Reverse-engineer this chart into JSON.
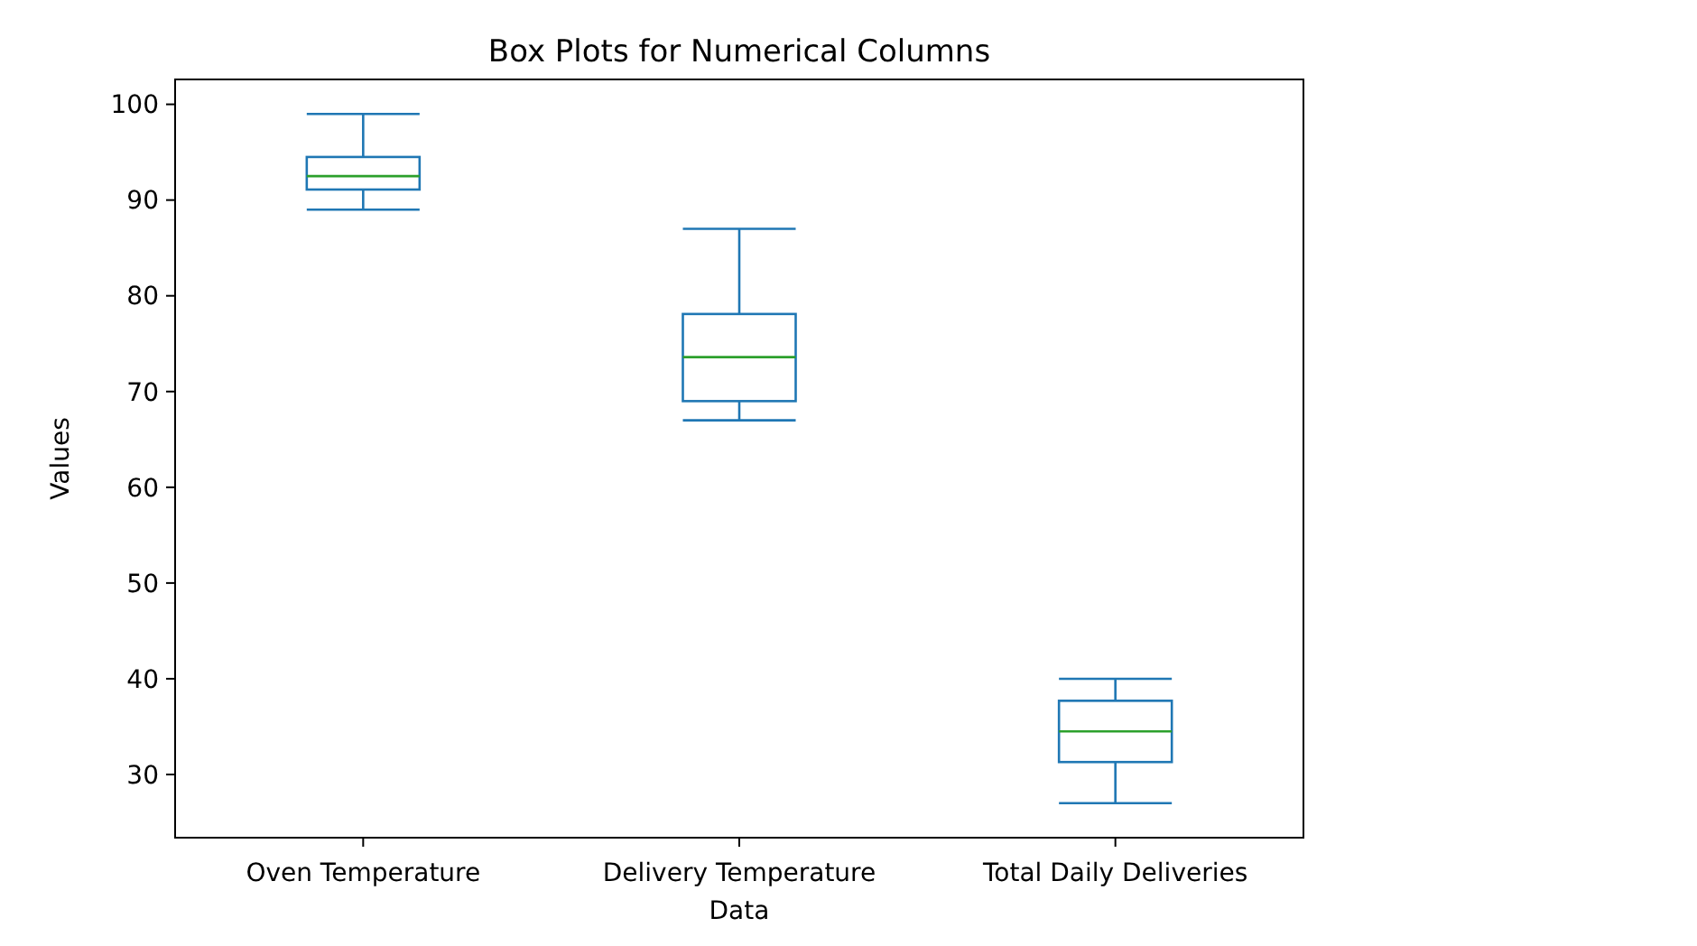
{
  "chart_data": {
    "type": "box",
    "title": "Box Plots for Numerical Columns",
    "xlabel": "Data",
    "ylabel": "Values",
    "categories": [
      "Oven Temperature",
      "Delivery Temperature",
      "Total Daily Deliveries"
    ],
    "boxes": [
      {
        "low": 89,
        "q1": 91.1,
        "median": 92.5,
        "q3": 94.5,
        "high": 99
      },
      {
        "low": 67,
        "q1": 69,
        "median": 73.6,
        "q3": 78.1,
        "high": 87
      },
      {
        "low": 27,
        "q1": 31.3,
        "median": 34.5,
        "q3": 37.7,
        "high": 40
      }
    ],
    "color": "#1f77b4",
    "ylim": [
      23.4,
      102.6
    ],
    "yticks": [
      30,
      40,
      50,
      60,
      70,
      80,
      90,
      100
    ]
  }
}
